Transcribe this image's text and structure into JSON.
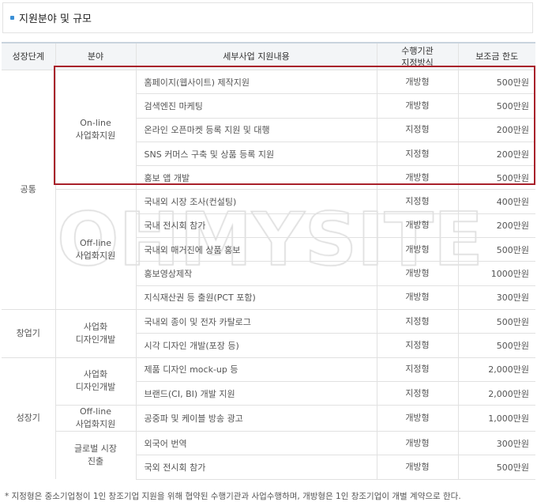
{
  "section_title": "지원분야 및 규모",
  "colors": {
    "accent": "#3a8fd6",
    "highlight_border": "#a8202a"
  },
  "watermark": "OHMYSITE",
  "table": {
    "headers": [
      "성장단계",
      "분야",
      "세부사업 지원내용",
      "수행기관\n지정방식",
      "보조금 한도"
    ],
    "header_method_line1": "수행기관",
    "header_method_line2": "지정방식",
    "stages": [
      {
        "name": "공통",
        "fields": [
          {
            "name1": "On-line",
            "name2": "사업화지원",
            "rows": [
              [
                "홈페이지(웹사이트) 제작지원",
                "개방형",
                "500만원"
              ],
              [
                "검색엔진 마케팅",
                "개방형",
                "500만원"
              ],
              [
                "온라인 오픈마켓 등록 지원 및 대행",
                "지정형",
                "200만원"
              ],
              [
                "SNS 커머스 구축 및 상품 등록 지원",
                "지정형",
                "200만원"
              ],
              [
                "홍보 앱 개발",
                "개방형",
                "500만원"
              ]
            ]
          },
          {
            "name1": "Off-line",
            "name2": "사업화지원",
            "rows": [
              [
                "국내외 시장 조사(컨설팅)",
                "지정형",
                "400만원"
              ],
              [
                "국내 전시회 참가",
                "개방형",
                "200만원"
              ],
              [
                "국내외 매거진에 상품 홍보",
                "개방형",
                "500만원"
              ],
              [
                "홍보영상제작",
                "개방형",
                "1000만원"
              ],
              [
                "지식재산권 등 출원(PCT 포함)",
                "개방형",
                "300만원"
              ]
            ]
          }
        ]
      },
      {
        "name": "창업기",
        "fields": [
          {
            "name1": "사업화",
            "name2": "디자인개발",
            "rows": [
              [
                "국내외 종이 및 전자 카탈로그",
                "지정형",
                "500만원"
              ],
              [
                "시각 디자인 개발(포장 등)",
                "지정형",
                "500만원"
              ]
            ]
          }
        ]
      },
      {
        "name": "성장기",
        "fields": [
          {
            "name1": "사업화",
            "name2": "디자인개발",
            "rows": [
              [
                "제품 디자인 mock-up 등",
                "지정형",
                "2,000만원"
              ],
              [
                "브랜드(CI, BI) 개발 지원",
                "지정형",
                "2,000만원"
              ]
            ]
          },
          {
            "name1": "Off-line",
            "name2": "사업화지원",
            "rows": [
              [
                "공중파 및 케이블 방송 광고",
                "개방형",
                "1,000만원"
              ]
            ]
          },
          {
            "name1": "글로벌 시장",
            "name2": "진출",
            "rows": [
              [
                "외국어 번역",
                "개방형",
                "300만원"
              ],
              [
                "국외 전시회 참가",
                "개방형",
                "500만원"
              ]
            ]
          }
        ]
      }
    ]
  },
  "footnote": "* 지정형은 중소기업청이 1인 창조기업 지원을 위해 협약된 수행기관과 사업수행하며, 개방형은 1인 창조기업이 개별 계약으로 한다."
}
